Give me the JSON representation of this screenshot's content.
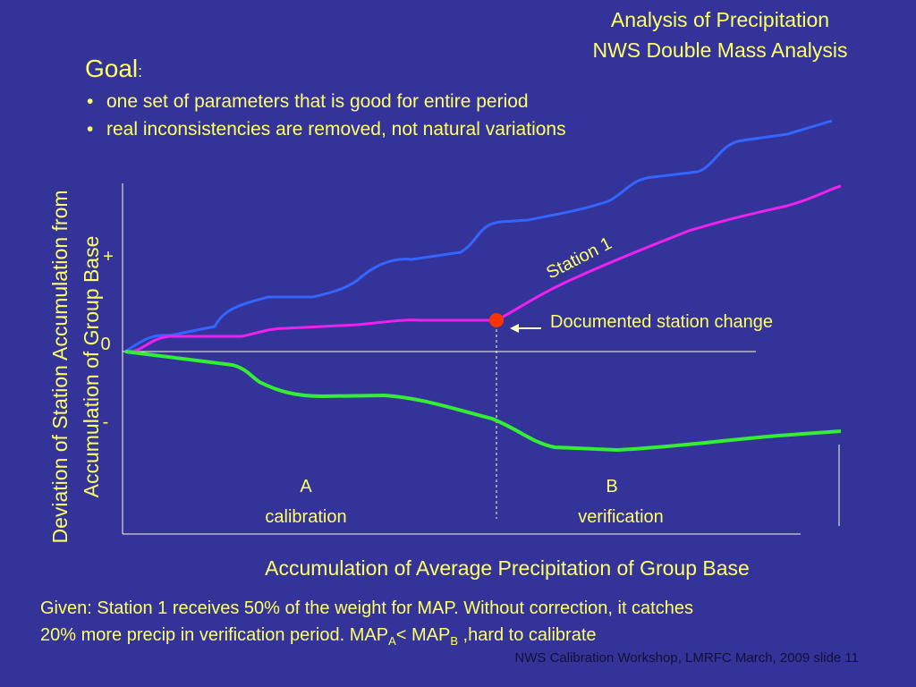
{
  "header": {
    "title_lines": [
      "Analysis of Precipitation",
      "NWS Double Mass Analysis"
    ]
  },
  "goal": {
    "heading": "Goal",
    "colon": ":",
    "bullets": [
      "one set of parameters that is good for entire period",
      "real inconsistencies are removed, not natural variations"
    ]
  },
  "diagram": {
    "y_axis_label_lines": [
      "Deviation of Station Accumulation from",
      "Accumulation of Group Base"
    ],
    "plus": "+",
    "zero": "0",
    "minus": "-",
    "station_label": "Station 1",
    "change_label": "Documented station change",
    "period_a": {
      "letter": "A",
      "name": "calibration"
    },
    "period_b": {
      "letter": "B",
      "name": "verification"
    },
    "x_axis_label": "Accumulation of Average Precipitation of Group Base"
  },
  "note": {
    "line1": "Given: Station 1 receives 50% of the weight for MAP. Without correction, it catches",
    "line2_start": "20% more precip in verification period.  MAP",
    "sub_a": "A",
    "middle": "< MAP",
    "sub_b": "B",
    "end": " ,hard to calibrate"
  },
  "footer": "NWS Calibration Workshop, LMRFC March, 2009 slide 11"
}
